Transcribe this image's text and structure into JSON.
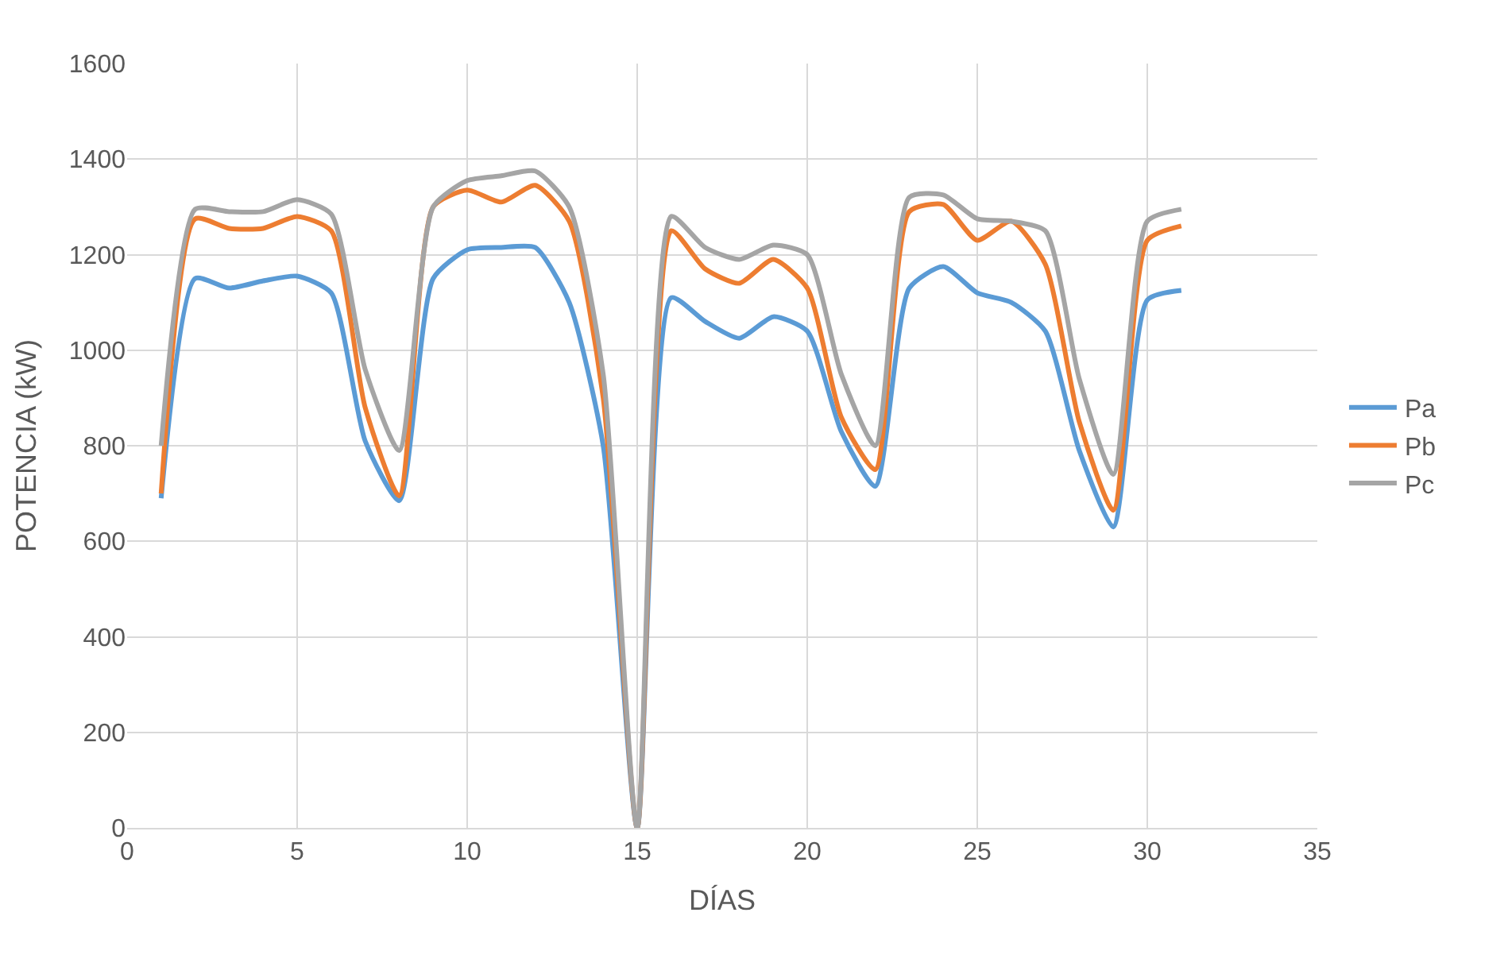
{
  "chart_data": {
    "type": "line",
    "xlabel": "DÍAS",
    "ylabel": "POTENCIA (kW)",
    "x": [
      1,
      2,
      3,
      4,
      5,
      6,
      7,
      8,
      9,
      10,
      11,
      12,
      13,
      14,
      15,
      16,
      17,
      18,
      19,
      20,
      21,
      22,
      23,
      24,
      25,
      26,
      27,
      28,
      29,
      30,
      31
    ],
    "series": [
      {
        "name": "Pa",
        "color": "#5b9bd5",
        "values": [
          690,
          1150,
          1130,
          1145,
          1155,
          1120,
          810,
          685,
          1150,
          1210,
          1215,
          1215,
          1100,
          800,
          0,
          1110,
          1060,
          1025,
          1070,
          1040,
          830,
          715,
          1130,
          1175,
          1120,
          1100,
          1040,
          790,
          630,
          1105,
          1125
        ]
      },
      {
        "name": "Pb",
        "color": "#ed7d31",
        "values": [
          700,
          1275,
          1255,
          1255,
          1280,
          1250,
          880,
          695,
          1300,
          1335,
          1310,
          1345,
          1270,
          900,
          0,
          1250,
          1170,
          1140,
          1190,
          1130,
          860,
          750,
          1290,
          1305,
          1230,
          1270,
          1180,
          850,
          665,
          1230,
          1260
        ]
      },
      {
        "name": "Pc",
        "color": "#a5a5a5",
        "values": [
          800,
          1295,
          1290,
          1290,
          1315,
          1285,
          960,
          790,
          1300,
          1355,
          1365,
          1375,
          1300,
          950,
          0,
          1280,
          1215,
          1190,
          1220,
          1200,
          950,
          800,
          1320,
          1325,
          1275,
          1270,
          1250,
          940,
          740,
          1270,
          1295
        ]
      }
    ],
    "xlim": [
      0,
      35
    ],
    "xticks": [
      0,
      5,
      10,
      15,
      20,
      25,
      30,
      35
    ],
    "ylim": [
      0,
      1600
    ],
    "yticks": [
      0,
      200,
      400,
      600,
      800,
      1000,
      1200,
      1400,
      1600
    ],
    "grid": true,
    "legend": "right",
    "marker": "none",
    "line_style": "solid"
  }
}
